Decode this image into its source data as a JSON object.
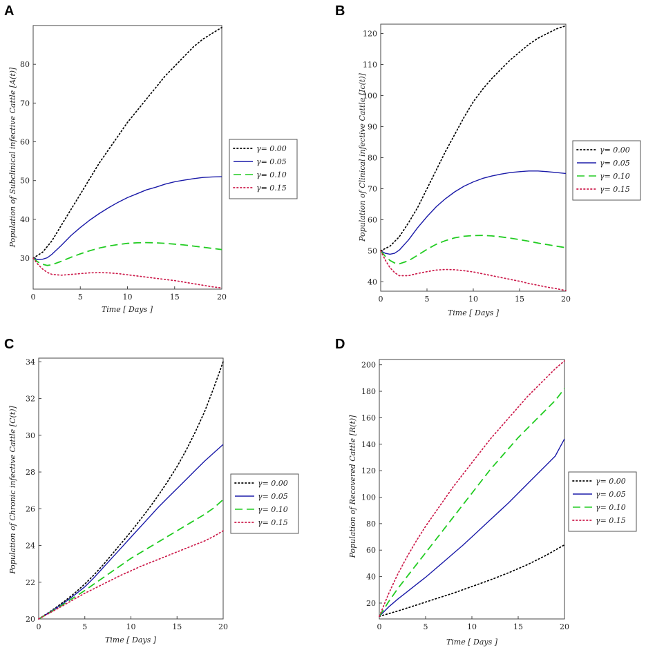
{
  "chart_data": [
    {
      "panel": "A",
      "type": "line",
      "xlabel": "Time [ Days ]",
      "ylabel": "Population of Subclinical infective Cattle [A(t)]",
      "xlim": [
        0,
        20
      ],
      "ylim": [
        22,
        90
      ],
      "xticks": [
        0,
        5,
        10,
        15,
        20
      ],
      "yticks": [
        30,
        40,
        50,
        60,
        70,
        80
      ],
      "legend": [
        "γ= 0.00",
        "γ= 0.05",
        "γ= 0.10",
        "γ= 0.15"
      ],
      "series": [
        {
          "name": "γ= 0.00",
          "color": "#000000",
          "style": "dotted",
          "x": [
            0,
            1,
            2,
            3,
            4,
            5,
            6,
            7,
            8,
            9,
            10,
            11,
            12,
            13,
            14,
            15,
            16,
            17,
            18,
            19,
            20
          ],
          "y": [
            30,
            31.5,
            34.5,
            38.5,
            42.5,
            46.5,
            50.5,
            54.5,
            58,
            61.5,
            65,
            68,
            71,
            74,
            77,
            79.5,
            82,
            84.5,
            86.5,
            88,
            89.5
          ]
        },
        {
          "name": "γ= 0.05",
          "color": "#1a1aa8",
          "style": "solid",
          "x": [
            0,
            0.5,
            1,
            1.5,
            2,
            3,
            4,
            5,
            6,
            7,
            8,
            9,
            10,
            11,
            12,
            13,
            14,
            15,
            16,
            17,
            18,
            19,
            20
          ],
          "y": [
            30,
            29.6,
            29.7,
            30.1,
            31,
            33.3,
            35.8,
            37.9,
            39.8,
            41.5,
            43,
            44.4,
            45.6,
            46.6,
            47.6,
            48.3,
            49.1,
            49.7,
            50.1,
            50.5,
            50.8,
            50.95,
            51
          ]
        },
        {
          "name": "γ= 0.10",
          "color": "#22cc22",
          "style": "dashed",
          "x": [
            0,
            0.5,
            1,
            1.5,
            2,
            3,
            4,
            5,
            6,
            7,
            8,
            9,
            10,
            11,
            12,
            13,
            14,
            15,
            16,
            17,
            18,
            19,
            20
          ],
          "y": [
            30,
            29,
            28.4,
            28.1,
            28.3,
            29.2,
            30.2,
            31.1,
            31.9,
            32.6,
            33.1,
            33.5,
            33.8,
            33.95,
            34,
            33.95,
            33.8,
            33.6,
            33.4,
            33.1,
            32.8,
            32.5,
            32.2
          ]
        },
        {
          "name": "γ= 0.15",
          "color": "#cc1a4a",
          "style": "dotted",
          "x": [
            0,
            0.5,
            1,
            1.5,
            2,
            3,
            4,
            5,
            6,
            7,
            8,
            9,
            10,
            11,
            12,
            13,
            14,
            15,
            16,
            17,
            18,
            19,
            20
          ],
          "y": [
            30,
            28.4,
            27.2,
            26.3,
            25.8,
            25.6,
            25.8,
            26,
            26.2,
            26.25,
            26.2,
            26,
            25.7,
            25.4,
            25.1,
            24.8,
            24.5,
            24.2,
            23.8,
            23.4,
            23,
            22.6,
            22.3
          ]
        }
      ]
    },
    {
      "panel": "B",
      "type": "line",
      "xlabel": "Time [ Days ]",
      "ylabel": "Population of Clinical infective Cattle [Ic(t)]",
      "xlim": [
        0,
        20
      ],
      "ylim": [
        37,
        123
      ],
      "xticks": [
        0,
        5,
        10,
        15,
        20
      ],
      "yticks": [
        40,
        50,
        60,
        70,
        80,
        90,
        100,
        110,
        120
      ],
      "legend": [
        "γ= 0.00",
        "γ= 0.05",
        "γ= 0.10",
        "γ= 0.15"
      ],
      "series": [
        {
          "name": "γ= 0.00",
          "color": "#000000",
          "style": "dotted",
          "x": [
            0,
            1,
            2,
            3,
            4,
            5,
            6,
            7,
            8,
            9,
            10,
            11,
            12,
            13,
            14,
            15,
            16,
            17,
            18,
            19,
            20
          ],
          "y": [
            50,
            51.5,
            54.5,
            59,
            64,
            70,
            76,
            82,
            87.5,
            93,
            98,
            102,
            105.5,
            108.5,
            111.5,
            114,
            116.5,
            118.5,
            120,
            121.5,
            122.5
          ]
        },
        {
          "name": "γ= 0.05",
          "color": "#1a1aa8",
          "style": "solid",
          "x": [
            0,
            0.5,
            1,
            1.5,
            2,
            3,
            4,
            5,
            6,
            7,
            8,
            9,
            10,
            11,
            12,
            13,
            14,
            15,
            16,
            17,
            18,
            19,
            20
          ],
          "y": [
            50,
            49.2,
            48.9,
            49.2,
            50.2,
            53.5,
            57.5,
            61,
            64.2,
            66.8,
            69,
            70.8,
            72.2,
            73.3,
            74.1,
            74.7,
            75.2,
            75.5,
            75.7,
            75.7,
            75.5,
            75.2,
            74.9
          ]
        },
        {
          "name": "γ= 0.10",
          "color": "#22cc22",
          "style": "dashed",
          "x": [
            0,
            0.5,
            1,
            1.5,
            2,
            3,
            4,
            5,
            6,
            7,
            8,
            9,
            10,
            11,
            12,
            13,
            14,
            15,
            16,
            17,
            18,
            19,
            20
          ],
          "y": [
            50,
            48.2,
            46.9,
            46.1,
            45.8,
            46.8,
            48.6,
            50.5,
            52.1,
            53.3,
            54.2,
            54.7,
            54.9,
            54.95,
            54.8,
            54.5,
            54.1,
            53.6,
            53.1,
            52.5,
            52,
            51.5,
            51
          ]
        },
        {
          "name": "γ= 0.15",
          "color": "#cc1a4a",
          "style": "dotted",
          "x": [
            0,
            0.5,
            1,
            1.5,
            2,
            3,
            4,
            5,
            6,
            7,
            8,
            9,
            10,
            11,
            12,
            13,
            14,
            15,
            16,
            17,
            18,
            19,
            20
          ],
          "y": [
            50,
            47,
            44.6,
            43,
            42,
            42,
            42.7,
            43.3,
            43.8,
            44,
            43.9,
            43.6,
            43.2,
            42.6,
            42,
            41.4,
            40.8,
            40.2,
            39.5,
            38.9,
            38.3,
            37.8,
            37.2
          ]
        }
      ]
    },
    {
      "panel": "C",
      "type": "line",
      "xlabel": "Time [ Days ]",
      "ylabel": "Population of Chronic infective Cattle [C(t)]",
      "xlim": [
        0,
        20
      ],
      "ylim": [
        20,
        34.2
      ],
      "xticks": [
        0,
        5,
        10,
        15,
        20
      ],
      "yticks": [
        20,
        22,
        24,
        26,
        28,
        30,
        32,
        34
      ],
      "legend": [
        "γ= 0.00",
        "γ= 0.05",
        "γ= 0.10",
        "γ= 0.15"
      ],
      "series": [
        {
          "name": "γ= 0.00",
          "color": "#000000",
          "style": "dotted",
          "x": [
            0,
            1,
            2,
            3,
            4,
            5,
            6,
            7,
            8,
            9,
            10,
            11,
            12,
            13,
            14,
            15,
            16,
            17,
            18,
            19,
            20
          ],
          "y": [
            20,
            20.32,
            20.67,
            21.04,
            21.45,
            21.9,
            22.4,
            22.95,
            23.55,
            24.15,
            24.75,
            25.4,
            26.05,
            26.75,
            27.5,
            28.3,
            29.2,
            30.2,
            31.3,
            32.6,
            34
          ]
        },
        {
          "name": "γ= 0.05",
          "color": "#1a1aa8",
          "style": "solid",
          "x": [
            0,
            1,
            2,
            3,
            4,
            5,
            6,
            7,
            8,
            9,
            10,
            11,
            12,
            13,
            14,
            15,
            16,
            17,
            18,
            19,
            20
          ],
          "y": [
            20,
            20.3,
            20.62,
            20.97,
            21.35,
            21.75,
            22.25,
            22.8,
            23.35,
            23.9,
            24.45,
            25,
            25.55,
            26.1,
            26.6,
            27.1,
            27.6,
            28.1,
            28.6,
            29.05,
            29.5
          ]
        },
        {
          "name": "γ= 0.10",
          "color": "#22cc22",
          "style": "dashed",
          "x": [
            0,
            1,
            2,
            3,
            4,
            5,
            6,
            7,
            8,
            9,
            10,
            11,
            12,
            13,
            14,
            15,
            16,
            17,
            18,
            19,
            20
          ],
          "y": [
            20,
            20.28,
            20.58,
            20.9,
            21.22,
            21.55,
            21.9,
            22.25,
            22.6,
            22.95,
            23.3,
            23.6,
            23.9,
            24.2,
            24.5,
            24.8,
            25.1,
            25.4,
            25.7,
            26.05,
            26.5
          ]
        },
        {
          "name": "γ= 0.15",
          "color": "#cc1a4a",
          "style": "dotted",
          "x": [
            0,
            1,
            2,
            3,
            4,
            5,
            6,
            7,
            8,
            9,
            10,
            11,
            12,
            13,
            14,
            15,
            16,
            17,
            18,
            19,
            20
          ],
          "y": [
            20,
            20.27,
            20.55,
            20.83,
            21.12,
            21.4,
            21.65,
            21.9,
            22.15,
            22.4,
            22.62,
            22.85,
            23.05,
            23.25,
            23.45,
            23.65,
            23.85,
            24.05,
            24.25,
            24.5,
            24.8
          ]
        }
      ]
    },
    {
      "panel": "D",
      "type": "line",
      "xlabel": "Time [ Days ]",
      "ylabel": "Population of Recovered Cattle [R(t)]",
      "xlim": [
        0,
        20
      ],
      "ylim": [
        8,
        204
      ],
      "xticks": [
        0,
        5,
        10,
        15,
        20
      ],
      "yticks": [
        20,
        40,
        60,
        80,
        100,
        120,
        140,
        160,
        180,
        200
      ],
      "legend": [
        "γ= 0.00",
        "γ= 0.05",
        "γ= 0.10",
        "γ= 0.15"
      ],
      "series": [
        {
          "name": "γ= 0.00",
          "color": "#000000",
          "style": "dotted",
          "x": [
            0,
            2,
            4,
            6,
            8,
            10,
            12,
            14,
            16,
            18,
            20
          ],
          "y": [
            10,
            14,
            18.5,
            23,
            27.5,
            32.5,
            37.5,
            43,
            49,
            56,
            64
          ]
        },
        {
          "name": "γ= 0.05",
          "color": "#1a1aa8",
          "style": "solid",
          "x": [
            0,
            1,
            2,
            3,
            4,
            5,
            6,
            7,
            8,
            9,
            10,
            11,
            12,
            13,
            14,
            15,
            16,
            17,
            18,
            19,
            20
          ],
          "y": [
            10,
            17,
            23,
            28.5,
            34,
            39.5,
            45.5,
            51.5,
            57.5,
            63.5,
            70,
            76.5,
            83,
            89.5,
            96,
            103,
            110,
            117,
            124,
            131,
            144
          ]
        },
        {
          "name": "γ= 0.10",
          "color": "#22cc22",
          "style": "dashed",
          "x": [
            0,
            1,
            2,
            3,
            4,
            5,
            6,
            7,
            8,
            9,
            10,
            11,
            12,
            13,
            14,
            15,
            16,
            17,
            18,
            19,
            20
          ],
          "y": [
            10,
            21,
            31,
            40,
            49,
            58,
            67,
            76,
            85,
            94,
            103,
            112,
            121,
            129,
            137,
            145,
            152,
            159,
            166,
            173,
            182
          ]
        },
        {
          "name": "γ= 0.15",
          "color": "#cc1a4a",
          "style": "dotted",
          "x": [
            0,
            1,
            2,
            3,
            4,
            5,
            6,
            7,
            8,
            9,
            10,
            11,
            12,
            13,
            14,
            15,
            16,
            17,
            18,
            19,
            20
          ],
          "y": [
            10,
            27,
            42,
            55,
            67,
            78,
            88,
            98,
            108,
            117,
            126,
            135,
            144,
            152,
            160,
            168,
            176,
            183,
            190,
            197,
            203
          ]
        }
      ]
    }
  ]
}
